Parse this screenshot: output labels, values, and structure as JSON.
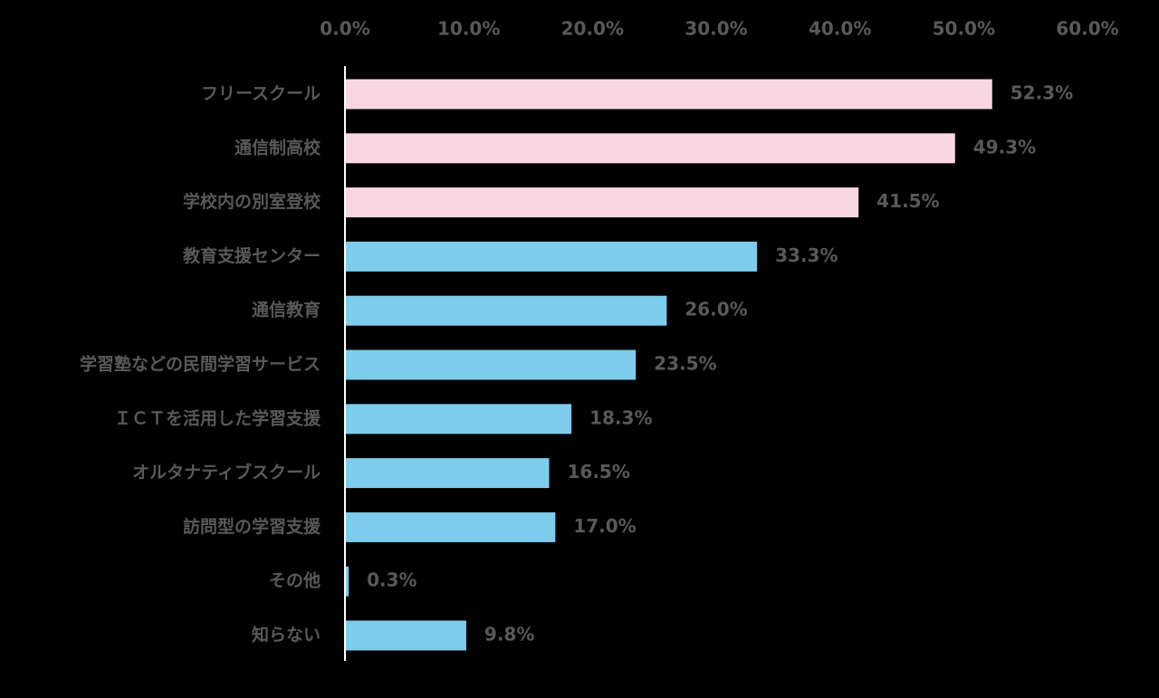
{
  "chart_data": {
    "type": "bar",
    "orientation": "horizontal",
    "categories": [
      "フリースクール",
      "通信制高校",
      "学校内の別室登校",
      "教育支援センター",
      "通信教育",
      "学習塾などの民間学習サービス",
      "ＩＣＴを活用した学習支援",
      "オルタナティブスクール",
      "訪問型の学習支援",
      "その他",
      "知らない"
    ],
    "values": [
      52.3,
      49.3,
      41.5,
      33.3,
      26.0,
      23.5,
      18.3,
      16.5,
      17.0,
      0.3,
      9.8
    ],
    "value_labels": [
      "52.3%",
      "49.3%",
      "41.5%",
      "33.3%",
      "26.0%",
      "23.5%",
      "18.3%",
      "16.5%",
      "17.0%",
      "0.3%",
      "9.8%"
    ],
    "bar_colors": [
      "#F8D7E3",
      "#F8D7E3",
      "#F8D7E3",
      "#7ECCEB",
      "#7ECCEB",
      "#7ECCEB",
      "#7ECCEB",
      "#7ECCEB",
      "#7ECCEB",
      "#7ECCEB",
      "#7ECCEB"
    ],
    "xlim": [
      0,
      60
    ],
    "x_ticks": [
      0,
      10,
      20,
      30,
      40,
      50,
      60
    ],
    "x_tick_labels": [
      "0.0%",
      "10.0%",
      "20.0%",
      "30.0%",
      "40.0%",
      "50.0%",
      "60.0%"
    ],
    "x_axis_position": "top",
    "grid": false,
    "title": "",
    "xlabel": "",
    "ylabel": ""
  },
  "colors": {
    "background": "#000000",
    "text": "#595959",
    "axis_line": "#FFFFFF",
    "highlight_bar": "#F8D7E3",
    "default_bar": "#7ECCEB"
  }
}
